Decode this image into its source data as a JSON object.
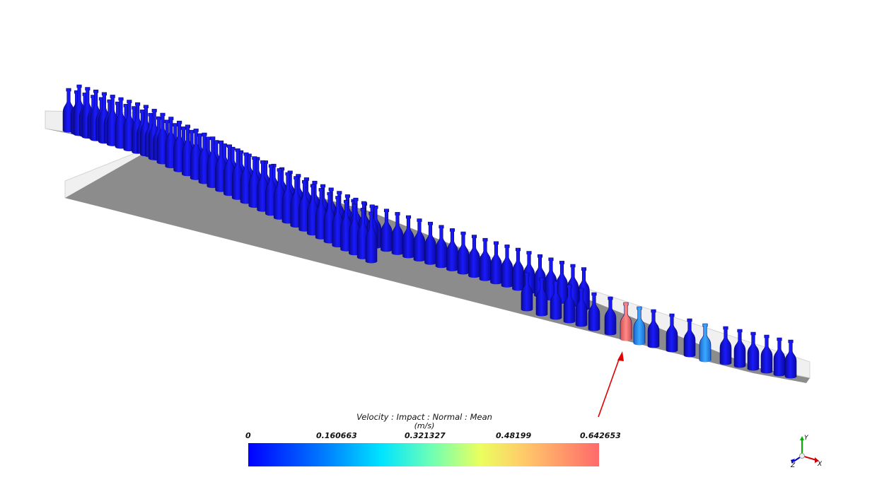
{
  "legend": {
    "title": "Velocity : Impact : Normal : Mean",
    "unit": "(m/s)",
    "ticks": [
      "0",
      "0.160663",
      "0.321327",
      "0.48199",
      "0.642653"
    ],
    "min": 0,
    "max": 0.642653,
    "colors": [
      "#0000ff",
      "#0072ff",
      "#00e4ff",
      "#6cffb6",
      "#eaff5e",
      "#ffcc6a",
      "#ff6a6a"
    ]
  },
  "axes": {
    "y": "Y",
    "z": "Z",
    "x": "X"
  },
  "colors": {
    "bottle": "#1010d8",
    "bottle_highlight": "#f07070",
    "bottle_light": "#2d8cf0",
    "conveyor": "#8a8a8a",
    "arrow": "#e00000"
  }
}
